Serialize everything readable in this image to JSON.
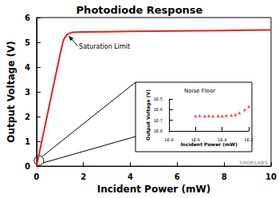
{
  "chart_data": [
    {
      "type": "line",
      "title": "Photodiode Response",
      "x_label": "Incident Power (mW)",
      "y_label": "Output Voltage (V)",
      "x": [
        0,
        0.5,
        1.0,
        1.15,
        1.3,
        1.5,
        2,
        3,
        4,
        5,
        6,
        7,
        8,
        9,
        10
      ],
      "values": [
        0,
        2.25,
        4.5,
        5.1,
        5.32,
        5.4,
        5.42,
        5.43,
        5.44,
        5.45,
        5.46,
        5.47,
        5.48,
        5.49,
        5.5
      ],
      "color": "#e8231c",
      "xlim": [
        0,
        10
      ],
      "xticks": [
        0,
        2,
        4,
        6,
        8,
        10
      ],
      "ylim": [
        0,
        6
      ],
      "yticks": [
        0,
        1,
        2,
        3,
        4,
        5,
        6
      ],
      "grid": false,
      "annotations": [
        {
          "text": "Saturation Limit",
          "x": 1.3,
          "y": 5.32
        }
      ],
      "source": "THORLABS"
    },
    {
      "type": "scatter",
      "title": "Noise Floor",
      "x_label": "Incident Power (mW)",
      "y_label": "Output Voltage (V)",
      "x": [
        1e-06,
        2e-06,
        5e-06,
        1e-05,
        2e-05,
        5e-05,
        0.0001,
        0.0002,
        0.0005,
        0.001,
        0.002,
        0.005,
        0.01
      ],
      "values": [
        2.5e-07,
        2.8e-07,
        2.6e-07,
        2.7e-07,
        2.5e-07,
        2.7e-07,
        2.6e-07,
        2.8e-07,
        3e-07,
        3.5e-07,
        5e-07,
        1e-06,
        2e-06
      ],
      "color": "#e8231c",
      "marker": "triangle",
      "log": true,
      "xlim": [
        1e-08,
        0.01
      ],
      "xticks": [
        {
          "value": 1e-08,
          "label": "1E-8"
        },
        {
          "value": 1e-06,
          "label": "1E-6"
        },
        {
          "value": 0.0001,
          "label": "1E-4"
        },
        {
          "value": 0.01,
          "label": "1E-2"
        }
      ],
      "ylim": [
        1e-08,
        1e-05
      ],
      "yticks": [
        {
          "value": 1e-08,
          "label": "1E-8"
        },
        {
          "value": 1e-07,
          "label": "1E-7"
        },
        {
          "value": 1e-06,
          "label": "1E-6"
        },
        {
          "value": 1e-05,
          "label": "1E-5"
        }
      ],
      "grid": false
    }
  ]
}
